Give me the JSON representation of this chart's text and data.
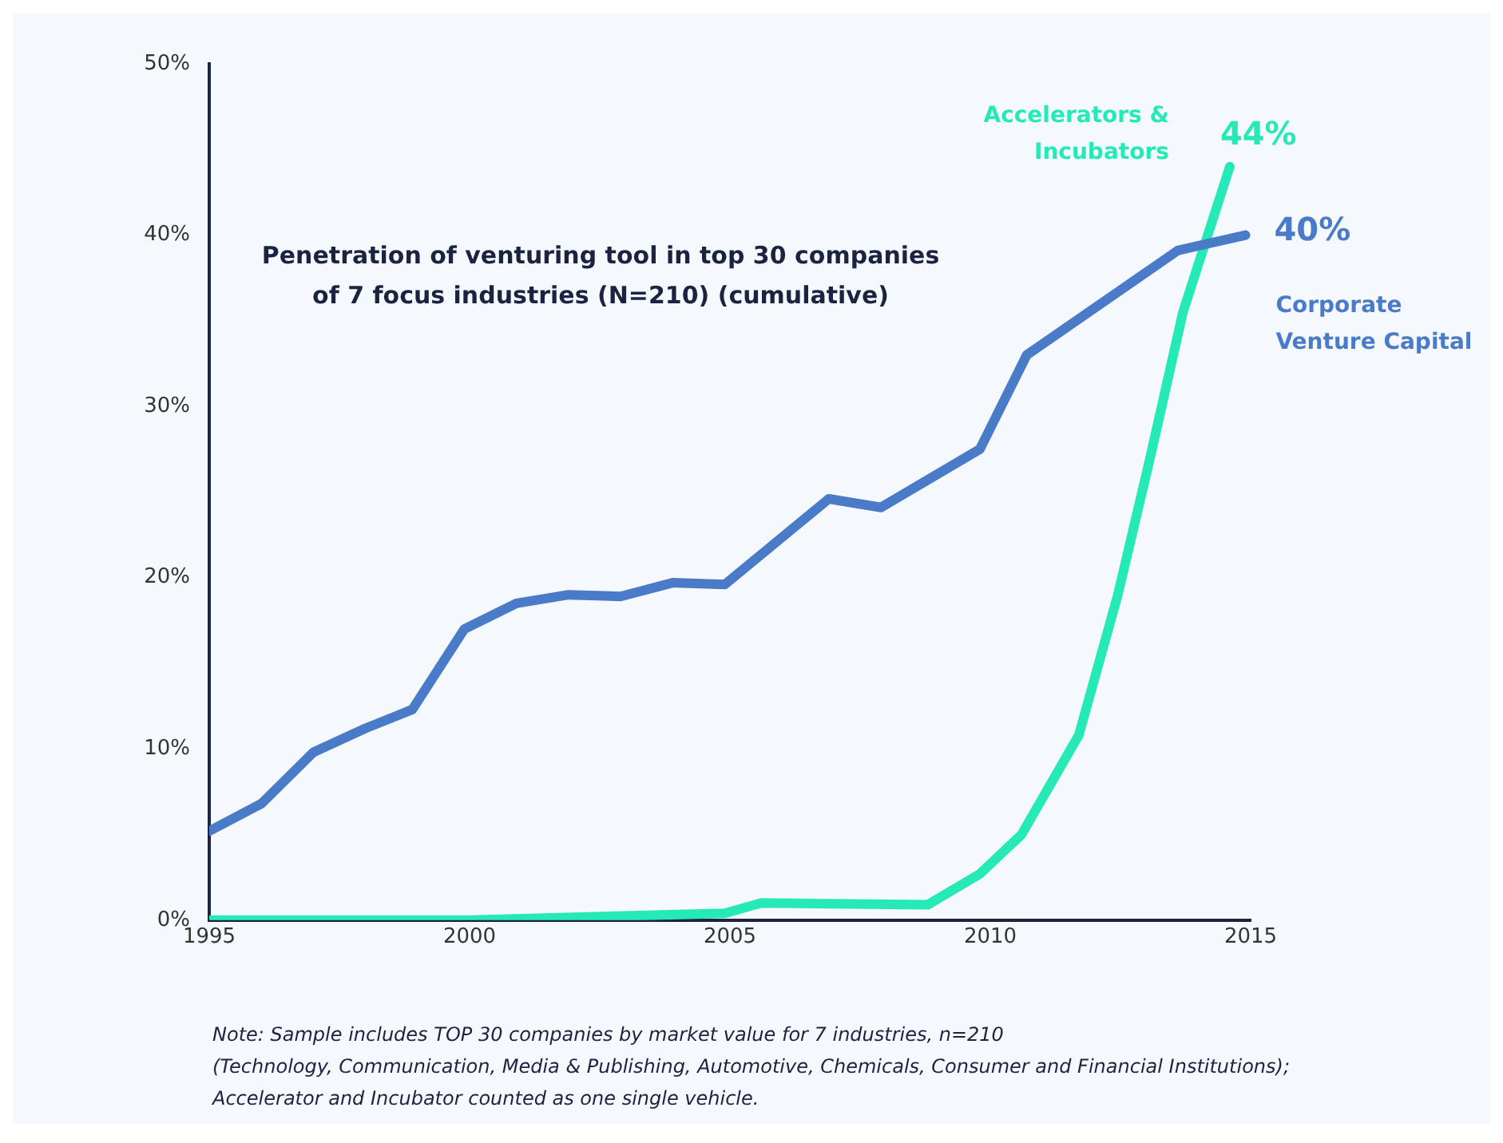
{
  "chart_data": {
    "type": "line",
    "title": "Penetration of venturing tool in top 30 companies of 7 focus industries (N=210) (cumulative)",
    "xlim": [
      1995,
      2015
    ],
    "xticks": [
      1995,
      2000,
      2005,
      2010,
      2015
    ],
    "ylim": [
      0,
      50
    ],
    "yticks": [
      {
        "value": 0,
        "label": "0%"
      },
      {
        "value": 10,
        "label": "10%"
      },
      {
        "value": 20,
        "label": "20%"
      },
      {
        "value": 30,
        "label": "30%"
      },
      {
        "value": 40,
        "label": "40%"
      },
      {
        "value": 50,
        "label": "50%"
      }
    ],
    "grid": false,
    "legend": false,
    "marker": "none",
    "line_style": "solid",
    "series": [
      {
        "name": "Corporate Venture Capital",
        "color": "#4a7bc8",
        "x": [
          1995,
          1996,
          1997,
          1998,
          1998.9,
          1999.9,
          2000.9,
          2001.9,
          2002.9,
          2003.9,
          2004.9,
          2006.9,
          2007.9,
          2009.8,
          2010.7,
          2013.6,
          2014.9
        ],
        "values": [
          5.2,
          6.8,
          9.8,
          11.2,
          12.3,
          17.0,
          18.5,
          19.0,
          18.9,
          19.7,
          19.6,
          24.6,
          24.1,
          27.5,
          33.0,
          39.1,
          40
        ],
        "value_labels": [
          null,
          null,
          null,
          null,
          null,
          null,
          null,
          null,
          null,
          null,
          null,
          null,
          null,
          null,
          null,
          null,
          "40%"
        ]
      },
      {
        "name": "Accelerators & Incubators",
        "color": "#25eab8",
        "x": [
          1995,
          2000,
          2004.9,
          2005.6,
          2008.8,
          2009.8,
          2010.6,
          2011.7,
          2012.45,
          2013.07,
          2013.7,
          2014.6
        ],
        "values": [
          0,
          0,
          0.4,
          1.0,
          0.9,
          2.7,
          5.0,
          10.8,
          19.0,
          27.0,
          35.5,
          44
        ],
        "value_labels": [
          null,
          null,
          null,
          null,
          null,
          null,
          null,
          null,
          null,
          null,
          null,
          "44%"
        ]
      }
    ],
    "annotations": [
      "Note: Sample includes TOP 30 companies by market value for 7 industries, n=210",
      "(Technology, Communication, Media & Publishing, Automotive, Chemicals, Consumer and Financial Institutions);",
      "Accelerator and Incubator counted as one single vehicle."
    ]
  }
}
